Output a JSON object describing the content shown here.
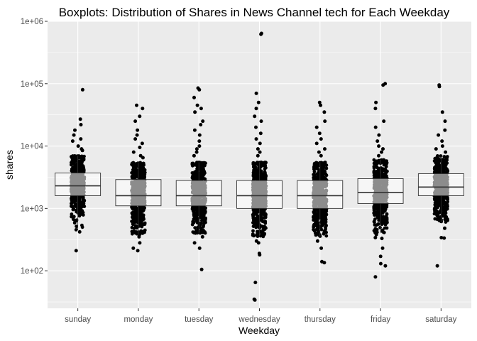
{
  "chart_data": {
    "type": "boxplot",
    "title": "Boxplots: Distribution of Shares in News Channel tech for Each Weekday",
    "xlabel": "Weekday",
    "ylabel": "shares",
    "y_scale": "log10",
    "ylim": [
      25,
      1000000
    ],
    "y_ticks": [
      100,
      1000,
      10000,
      100000,
      1000000
    ],
    "y_tick_labels": [
      "1e+02",
      "1e+03",
      "1e+04",
      "1e+05",
      "1e+06"
    ],
    "categories": [
      "sunday",
      "monday",
      "tuesday",
      "wednesday",
      "thursday",
      "friday",
      "saturday"
    ],
    "grid": true,
    "colors": {
      "panel": "#ebebeb",
      "grid_major": "#ffffff",
      "box_fill": "#ffffff",
      "box_stroke": "#333333",
      "points": "#000000"
    },
    "boxes": [
      {
        "category": "sunday",
        "q1": 1600,
        "median": 2300,
        "q3": 3700,
        "whisker_low": 450,
        "whisker_high": 7000,
        "outliers": [
          80000,
          27000,
          22000,
          18000,
          15000,
          13000,
          12000,
          10000,
          9000,
          8500,
          420,
          210
        ]
      },
      {
        "category": "monday",
        "q1": 1100,
        "median": 1600,
        "q3": 2900,
        "whisker_low": 380,
        "whisker_high": 5500,
        "outliers": [
          45000,
          40000,
          30000,
          25000,
          18000,
          15000,
          13000,
          11000,
          9500,
          8000,
          7000,
          6500,
          350,
          280,
          230,
          210
        ]
      },
      {
        "category": "tuesday",
        "q1": 1100,
        "median": 1600,
        "q3": 2800,
        "whisker_low": 400,
        "whisker_high": 5500,
        "outliers": [
          85000,
          80000,
          60000,
          45000,
          40000,
          35000,
          25000,
          22000,
          18000,
          15000,
          12000,
          10000,
          9000,
          8000,
          7000,
          350,
          280,
          230,
          105
        ]
      },
      {
        "category": "wednesday",
        "q1": 1000,
        "median": 1600,
        "q3": 2800,
        "whisker_low": 350,
        "whisker_high": 5500,
        "outliers": [
          640000,
          620000,
          70000,
          50000,
          40000,
          30000,
          25000,
          20000,
          16000,
          13000,
          11000,
          9000,
          8000,
          7000,
          300,
          280,
          190,
          180,
          65,
          35,
          34
        ]
      },
      {
        "category": "thursday",
        "q1": 1000,
        "median": 1600,
        "q3": 2800,
        "whisker_low": 350,
        "whisker_high": 5500,
        "outliers": [
          50000,
          45000,
          35000,
          25000,
          20000,
          16000,
          13000,
          11000,
          9000,
          8000,
          7000,
          300,
          230,
          140,
          135
        ]
      },
      {
        "category": "friday",
        "q1": 1200,
        "median": 1800,
        "q3": 3000,
        "whisker_low": 400,
        "whisker_high": 6000,
        "outliers": [
          100000,
          95000,
          50000,
          40000,
          25000,
          20000,
          15000,
          12000,
          10000,
          9000,
          8000,
          7000,
          380,
          340,
          330,
          230,
          170,
          130,
          120,
          80
        ]
      },
      {
        "category": "saturday",
        "q1": 1600,
        "median": 2200,
        "q3": 3600,
        "whisker_low": 600,
        "whisker_high": 7000,
        "outliers": [
          95000,
          90000,
          35000,
          25000,
          18000,
          15000,
          12000,
          10000,
          9000,
          8000,
          480,
          340,
          335,
          120
        ]
      }
    ]
  }
}
